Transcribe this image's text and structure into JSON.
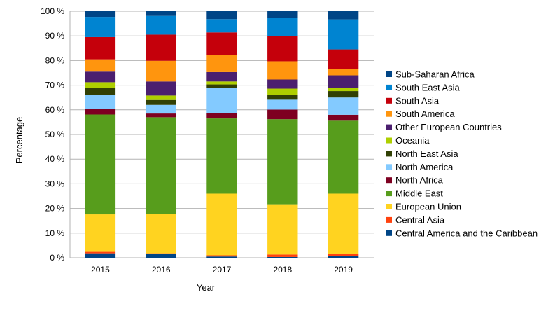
{
  "chart_data": {
    "type": "bar",
    "stacked": true,
    "xlabel": "Year",
    "ylabel": "Percentage",
    "ylim": [
      0,
      100
    ],
    "y_ticks": [
      "0 %",
      "10 %",
      "20 %",
      "30 %",
      "40 %",
      "50 %",
      "60 %",
      "70 %",
      "80 %",
      "90 %",
      "100 %"
    ],
    "grid": true,
    "legend_position": "right",
    "categories": [
      "2015",
      "2016",
      "2017",
      "2018",
      "2019"
    ],
    "series": [
      {
        "name": "Central America and the Caribbean",
        "color": "#004586",
        "values": [
          1.8,
          1.6,
          0.5,
          0.3,
          0.6
        ]
      },
      {
        "name": "Central Asia",
        "color": "#ff420e",
        "values": [
          0.6,
          0.2,
          0.5,
          1.0,
          0.9
        ]
      },
      {
        "name": "European Union",
        "color": "#ffd320",
        "values": [
          15.2,
          16.0,
          25.0,
          20.4,
          24.5
        ]
      },
      {
        "name": "Middle East",
        "color": "#579d1c",
        "values": [
          40.5,
          39.2,
          30.5,
          34.5,
          29.6
        ]
      },
      {
        "name": "North Africa",
        "color": "#7e0021",
        "values": [
          2.4,
          1.5,
          2.3,
          3.9,
          2.4
        ]
      },
      {
        "name": "North America",
        "color": "#83caff",
        "values": [
          5.5,
          3.5,
          10.0,
          4.0,
          7.0
        ]
      },
      {
        "name": "North East Asia",
        "color": "#314004",
        "values": [
          3.0,
          2.0,
          1.5,
          2.0,
          2.6
        ]
      },
      {
        "name": "Oceania",
        "color": "#aecf00",
        "values": [
          2.2,
          1.8,
          1.2,
          2.5,
          1.4
        ]
      },
      {
        "name": "Other European Countries",
        "color": "#4b1f6f",
        "values": [
          4.3,
          5.7,
          3.8,
          3.7,
          5.0
        ]
      },
      {
        "name": "South America",
        "color": "#ff950e",
        "values": [
          5.0,
          8.4,
          6.8,
          7.4,
          2.6
        ]
      },
      {
        "name": "South Asia",
        "color": "#c5000b",
        "values": [
          9.0,
          10.6,
          9.3,
          10.3,
          7.9
        ]
      },
      {
        "name": "South East Asia",
        "color": "#0084d1",
        "values": [
          8.2,
          7.6,
          5.4,
          7.4,
          12.2
        ]
      },
      {
        "name": "Sub-Saharan Africa",
        "color": "#004586",
        "values": [
          2.3,
          1.9,
          3.2,
          2.6,
          3.3
        ]
      }
    ]
  }
}
